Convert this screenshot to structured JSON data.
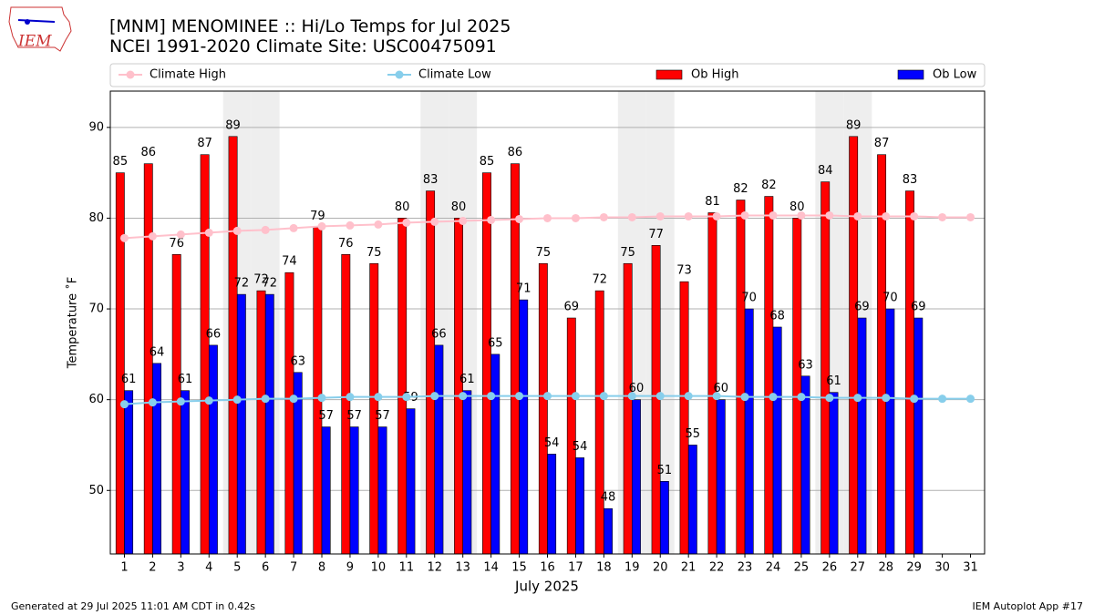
{
  "chart_data": {
    "type": "bar",
    "logo": "IEM",
    "title": "[MNM] MENOMINEE :: Hi/Lo Temps for Jul 2025",
    "subtitle": "NCEI 1991-2020 Climate Site: USC00475091",
    "x_label": "July 2025",
    "y_label": "Temperature ˚F",
    "footer_left": "Generated at 29 Jul 2025 11:01 AM CDT in 0.42s",
    "footer_right": "IEM Autoplot App #17",
    "x": [
      1,
      2,
      3,
      4,
      5,
      6,
      7,
      8,
      9,
      10,
      11,
      12,
      13,
      14,
      15,
      16,
      17,
      18,
      19,
      20,
      21,
      22,
      23,
      24,
      25,
      26,
      27,
      28,
      29,
      30,
      31
    ],
    "xlim": [
      0.5,
      31.5
    ],
    "xticks": [
      1,
      2,
      3,
      4,
      5,
      6,
      7,
      8,
      9,
      10,
      11,
      12,
      13,
      14,
      15,
      16,
      17,
      18,
      19,
      20,
      21,
      22,
      23,
      24,
      25,
      26,
      27,
      28,
      29,
      30,
      31
    ],
    "ylim": [
      43,
      94
    ],
    "yticks": [
      50,
      60,
      70,
      80,
      90
    ],
    "grid": true,
    "shaded_days": [
      5,
      6,
      12,
      13,
      19,
      20,
      26,
      27
    ],
    "series": [
      {
        "name": "Climate High",
        "type": "line",
        "color": "#ffc0cb",
        "values": [
          77.8,
          78.0,
          78.2,
          78.4,
          78.6,
          78.7,
          78.9,
          79.1,
          79.2,
          79.3,
          79.5,
          79.6,
          79.7,
          79.8,
          79.9,
          80.0,
          80.0,
          80.1,
          80.1,
          80.2,
          80.2,
          80.2,
          80.3,
          80.3,
          80.3,
          80.3,
          80.2,
          80.2,
          80.2,
          80.1,
          80.1
        ]
      },
      {
        "name": "Climate Low",
        "type": "line",
        "color": "#87ceeb",
        "values": [
          59.5,
          59.7,
          59.8,
          59.9,
          60.0,
          60.1,
          60.1,
          60.2,
          60.3,
          60.3,
          60.3,
          60.4,
          60.4,
          60.4,
          60.4,
          60.4,
          60.4,
          60.4,
          60.4,
          60.4,
          60.4,
          60.4,
          60.3,
          60.3,
          60.3,
          60.2,
          60.2,
          60.2,
          60.1,
          60.1,
          60.1
        ]
      },
      {
        "name": "Ob High",
        "type": "bar",
        "color": "#ff0000",
        "values": [
          85,
          86,
          76,
          87,
          89,
          72,
          74,
          79,
          76,
          75,
          80,
          83,
          80,
          85,
          86,
          75,
          69,
          72,
          75,
          77,
          73,
          80.6,
          82,
          82.4,
          80,
          84,
          89,
          87,
          83,
          null,
          null
        ],
        "value_labels": [
          "85",
          "86",
          "76",
          "87",
          "89",
          "72",
          "74",
          "79",
          "76",
          "75",
          "80",
          "83",
          "80",
          "85",
          "86",
          "75",
          "69",
          "72",
          "75",
          "77",
          "73",
          "81",
          "82",
          "82",
          "80",
          "84",
          "89",
          "87",
          "83",
          null,
          null
        ]
      },
      {
        "name": "Ob Low",
        "type": "bar",
        "color": "#0000ff",
        "values": [
          61,
          64,
          61,
          66,
          71.6,
          71.6,
          63,
          57,
          57,
          57,
          59,
          66,
          61,
          65,
          71,
          54,
          53.6,
          48,
          60,
          51,
          55,
          60,
          70,
          68,
          62.6,
          60.8,
          69,
          70,
          69,
          null,
          null
        ],
        "value_labels": [
          "61",
          "64",
          "61",
          "66",
          "72",
          "72",
          "63",
          "57",
          "57",
          "57",
          "59",
          "66",
          "61",
          "65",
          "71",
          "54",
          "54",
          "48",
          "60",
          "51",
          "55",
          "60",
          "70",
          "68",
          "63",
          "61",
          "69",
          "70",
          "69",
          null,
          null
        ]
      }
    ]
  }
}
